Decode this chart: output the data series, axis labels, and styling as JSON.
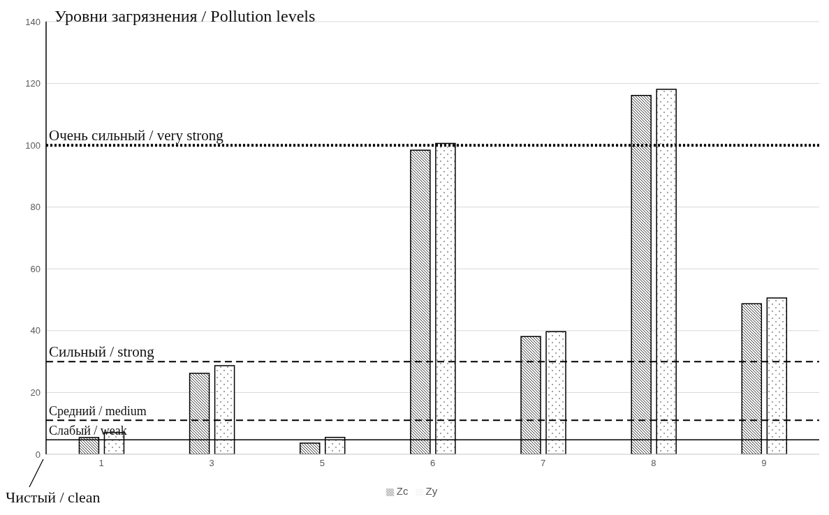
{
  "chart_data": {
    "type": "bar",
    "ylabel": "Уровни загрязнения / Pollution levels",
    "categories": [
      "1",
      "3",
      "5",
      "6",
      "7",
      "8",
      "9"
    ],
    "series": [
      {
        "name": "Zc",
        "color": "#000000",
        "values": [
          5.4,
          26.2,
          3.6,
          98.4,
          38.1,
          116.1,
          48.7
        ]
      },
      {
        "name": "Zy",
        "color": "#000000",
        "values": [
          7.0,
          28.7,
          5.5,
          100.6,
          39.7,
          118.1,
          50.6
        ]
      }
    ],
    "ylim": [
      0,
      140
    ],
    "yticks": [
      0,
      20,
      40,
      60,
      80,
      100,
      120,
      140
    ],
    "grid": "y",
    "legend": "bottom",
    "ref_lines": [
      {
        "axis": "y",
        "value": 100,
        "label": "Очень сильный / very strong",
        "color": "#000000",
        "line_style": "dotted"
      },
      {
        "axis": "y",
        "value": 30,
        "label": "Сильный / strong",
        "color": "#000000",
        "line_style": "dashed"
      },
      {
        "axis": "y",
        "value": 11,
        "label": "Средний / medium",
        "color": "#000000",
        "line_style": "dashed"
      },
      {
        "axis": "y",
        "value": 4.7,
        "label": "Слабый / weak",
        "color": "#000000",
        "line_style": "solid"
      }
    ],
    "annotations": [
      "Чистый / clean"
    ]
  }
}
